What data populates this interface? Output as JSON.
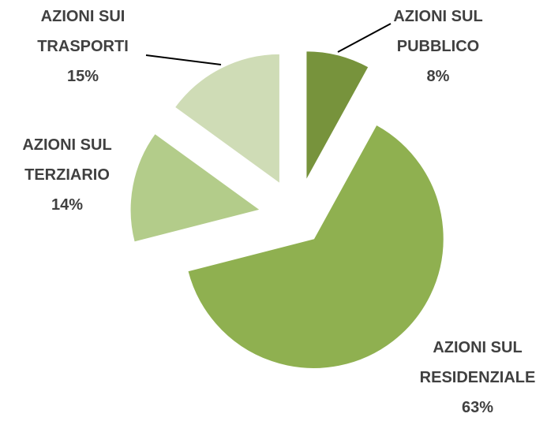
{
  "chart_data": {
    "type": "pie",
    "categories": [
      "AZIONI SUL PUBBLICO",
      "AZIONI SUL RESIDENZIALE",
      "AZIONI SUL TERZIARIO",
      "AZIONI SUI TRASPORTI"
    ],
    "values": [
      8,
      63,
      14,
      15
    ],
    "value_labels": [
      "8%",
      "63%",
      "14%",
      "15%"
    ],
    "colors": [
      "#77933c",
      "#8fb050",
      "#b3cc8a",
      "#cfdcb6"
    ]
  }
}
